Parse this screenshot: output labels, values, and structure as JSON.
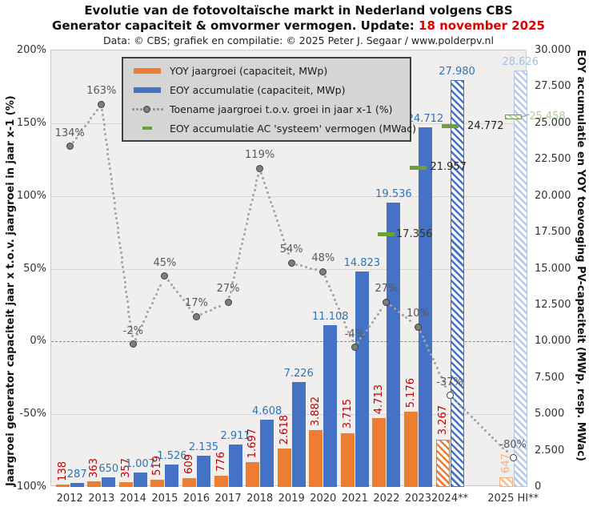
{
  "title": {
    "line1": "Evolutie van de fotovoltaïsche markt in Nederland volgens CBS",
    "line2_prefix": "Generator capaciteit & omvormer vermogen. Update: ",
    "line2_update": "18 november 2025",
    "line3": "Data: © CBS;  grafiek en compilatie:  © 2025 Peter J. Segaar / www.polderpv.nl"
  },
  "legend": {
    "items": [
      {
        "label": "YOY jaargroei (capaciteit, MWp)",
        "marker": "orange-bar"
      },
      {
        "label": "EOY accumulatie (capaciteit, MWp)",
        "marker": "blue-bar"
      },
      {
        "label": "Toename jaargroei t.o.v. groei in jaar x-1 (%)",
        "marker": "dotted-line"
      },
      {
        "label": "EOY accumulatie AC 'systeem' vermogen (MWac)",
        "marker": "green-dash"
      }
    ]
  },
  "axes": {
    "left": {
      "title": "Jaargroei generator capaciteit jaar x t.o.v. jaargroei in jaar x-1 (%)",
      "ticks": [
        "200%",
        "150%",
        "100%",
        "50%",
        "0%",
        "-50%",
        "-100%"
      ],
      "range_pct": [
        -100,
        200
      ]
    },
    "right": {
      "title": "EOY accumulatie en YOY toevoeging PV-capaciteit (MWp, resp. MWac)",
      "ticks": [
        "30.000",
        "27.500",
        "25.000",
        "22.500",
        "20.000",
        "17.500",
        "15.000",
        "12.500",
        "10.000",
        "7.500",
        "5.000",
        "2.500",
        "0"
      ],
      "range": [
        0,
        30000
      ]
    }
  },
  "chart_data": {
    "type": "bar",
    "title": "Evolutie van de fotovoltaïsche markt in Nederland volgens CBS",
    "categories": [
      "2012",
      "2013",
      "2014",
      "2015",
      "2016",
      "2017",
      "2018",
      "2019",
      "2020",
      "2021",
      "2022",
      "2023",
      "2024**",
      "2025 HI**"
    ],
    "estimated_category_indices": [
      12,
      13
    ],
    "left_axis_range_pct": [
      -100,
      200
    ],
    "right_axis_range_mwp": [
      0,
      30000
    ],
    "grid": "horizontal-50pct-steps",
    "legend_position": "top-left-inside",
    "series": [
      {
        "name": "YOY jaargroei (capaciteit, MWp)",
        "type": "bar",
        "color": "#ed7d31",
        "label_color": "#c00000",
        "values": [
          138,
          363,
          357,
          519,
          609,
          776,
          1697,
          2618,
          3882,
          3715,
          4713,
          5176,
          3267,
          647
        ],
        "labels": [
          "138",
          "363",
          "357",
          "519",
          "609",
          "776",
          "1.697",
          "2.618",
          "3.882",
          "3.715",
          "4.713",
          "5.176",
          "3.267",
          "647"
        ]
      },
      {
        "name": "EOY accumulatie (capaciteit, MWp)",
        "type": "bar",
        "color": "#4472c4",
        "label_color": "#2e75b6",
        "values": [
          287,
          650,
          1007,
          1526,
          2135,
          2911,
          4608,
          7226,
          11108,
          14823,
          19536,
          24712,
          27980,
          28626
        ],
        "labels": [
          "287",
          "650",
          "1.007",
          "1.526",
          "2.135",
          "2.911",
          "4.608",
          "7.226",
          "11.108",
          "14.823",
          "19.536",
          "24.712",
          "27.980",
          "28.626"
        ]
      },
      {
        "name": "Toename jaargroei t.o.v. groei in jaar x-1 (%)",
        "type": "line-dotted",
        "color": "#7d7d7d",
        "values_pct": [
          134,
          163,
          -2,
          45,
          17,
          27,
          119,
          54,
          48,
          -4,
          27,
          10,
          -37,
          -80
        ],
        "labels": [
          "134%",
          "163%",
          "-2%",
          "45%",
          "17%",
          "27%",
          "119%",
          "54%",
          "48%",
          "-4%",
          "27%",
          "10%",
          "-37%",
          "-80%"
        ]
      },
      {
        "name": "EOY accumulatie AC 'systeem' vermogen (MWac)",
        "type": "dash-marker",
        "color": "#6f9f3d",
        "values": [
          null,
          null,
          null,
          null,
          null,
          null,
          null,
          null,
          null,
          null,
          17356,
          21957,
          24772,
          25458
        ],
        "labels": [
          null,
          null,
          null,
          null,
          null,
          null,
          null,
          null,
          null,
          null,
          "17.356",
          "21.957",
          "24.772",
          "25.458"
        ]
      }
    ],
    "colors": {
      "orange_bar": "#ed7d31",
      "blue_bar": "#4472c4",
      "orange_label": "#c00000",
      "blue_label": "#2e75b6",
      "light_blue_label": "#9dc3e6",
      "light_orange_label": "#f4b183",
      "pct_label": "#595959",
      "green_dash": "#6f9f3d",
      "light_green_label": "#a9d18e",
      "update_red": "#e00000",
      "plot_bg": "#f0efed"
    }
  }
}
